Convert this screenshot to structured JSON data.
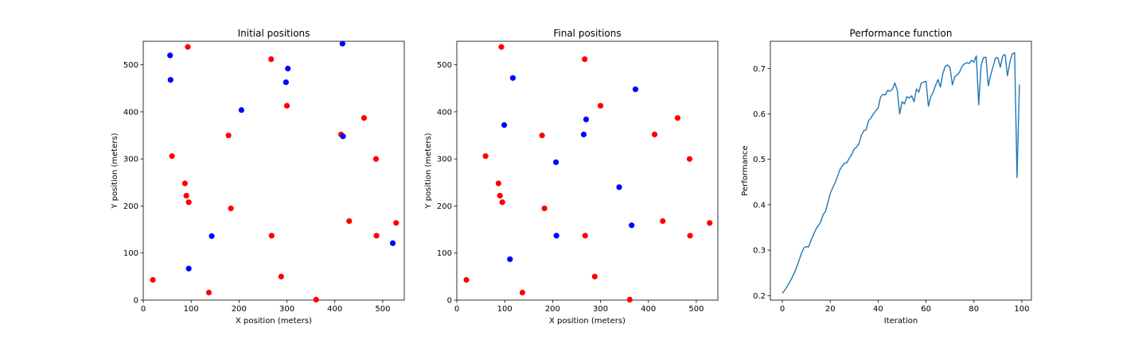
{
  "chart_data": [
    {
      "type": "scatter",
      "title": "Initial positions",
      "xlabel": "X position (meters)",
      "ylabel": "Y position (meters)",
      "xlim": [
        0,
        545
      ],
      "ylim": [
        0,
        550
      ],
      "xticks": [
        0,
        100,
        200,
        300,
        400,
        500
      ],
      "yticks": [
        0,
        100,
        200,
        300,
        400,
        500
      ],
      "grid": false,
      "series": [
        {
          "color": "#ff0000",
          "points": [
            [
              20,
              43
            ],
            [
              93,
              538
            ],
            [
              267,
              512
            ],
            [
              60,
              306
            ],
            [
              87,
              248
            ],
            [
              90,
              222
            ],
            [
              95,
              208
            ],
            [
              178,
              350
            ],
            [
              183,
              195
            ],
            [
              300,
              413
            ],
            [
              413,
              352
            ],
            [
              461,
              387
            ],
            [
              486,
              300
            ],
            [
              430,
              168
            ],
            [
              528,
              164
            ],
            [
              487,
              137
            ],
            [
              268,
              137
            ],
            [
              288,
              50
            ],
            [
              137,
              16
            ],
            [
              361,
              1
            ]
          ]
        },
        {
          "color": "#0000ff",
          "points": [
            [
              56,
              520
            ],
            [
              57,
              468
            ],
            [
              302,
              492
            ],
            [
              298,
              463
            ],
            [
              205,
              404
            ],
            [
              416,
              545
            ],
            [
              417,
              348
            ],
            [
              143,
              136
            ],
            [
              95,
              67
            ],
            [
              521,
              121
            ]
          ]
        }
      ]
    },
    {
      "type": "scatter",
      "title": "Final positions",
      "xlabel": "X position (meters)",
      "ylabel": "Y position (meters)",
      "xlim": [
        0,
        545
      ],
      "ylim": [
        0,
        550
      ],
      "xticks": [
        0,
        100,
        200,
        300,
        400,
        500
      ],
      "yticks": [
        0,
        100,
        200,
        300,
        400,
        500
      ],
      "grid": false,
      "series": [
        {
          "color": "#ff0000",
          "points": [
            [
              20,
              43
            ],
            [
              93,
              538
            ],
            [
              267,
              512
            ],
            [
              60,
              306
            ],
            [
              87,
              248
            ],
            [
              90,
              222
            ],
            [
              95,
              208
            ],
            [
              178,
              350
            ],
            [
              183,
              195
            ],
            [
              300,
              413
            ],
            [
              413,
              352
            ],
            [
              461,
              387
            ],
            [
              486,
              300
            ],
            [
              430,
              168
            ],
            [
              528,
              164
            ],
            [
              487,
              137
            ],
            [
              268,
              137
            ],
            [
              288,
              50
            ],
            [
              137,
              16
            ],
            [
              361,
              1
            ]
          ]
        },
        {
          "color": "#0000ff",
          "points": [
            [
              117,
              472
            ],
            [
              99,
              372
            ],
            [
              373,
              448
            ],
            [
              270,
              384
            ],
            [
              265,
              352
            ],
            [
              207,
              293
            ],
            [
              339,
              240
            ],
            [
              365,
              159
            ],
            [
              208,
              137
            ],
            [
              111,
              87
            ]
          ]
        }
      ]
    },
    {
      "type": "line",
      "title": "Performance function",
      "xlabel": "Iteration",
      "ylabel": "Performance",
      "xlim": [
        -5,
        104
      ],
      "ylim": [
        0.19,
        0.76
      ],
      "xticks": [
        0,
        20,
        40,
        60,
        80,
        100
      ],
      "yticks": [
        0.2,
        0.3,
        0.4,
        0.5,
        0.6,
        0.7
      ],
      "grid": false,
      "series": [
        {
          "color": "#1f77b4",
          "x": [
            0,
            1,
            2,
            3,
            4,
            5,
            6,
            7,
            8,
            9,
            10,
            11,
            12,
            13,
            14,
            15,
            16,
            17,
            18,
            19,
            20,
            21,
            22,
            23,
            24,
            25,
            26,
            27,
            28,
            29,
            30,
            31,
            32,
            33,
            34,
            35,
            36,
            37,
            38,
            39,
            40,
            41,
            42,
            43,
            44,
            45,
            46,
            47,
            48,
            49,
            50,
            51,
            52,
            53,
            54,
            55,
            56,
            57,
            58,
            59,
            60,
            61,
            62,
            63,
            64,
            65,
            66,
            67,
            68,
            69,
            70,
            71,
            72,
            73,
            74,
            75,
            76,
            77,
            78,
            79,
            80,
            81,
            82,
            83,
            84,
            85,
            86,
            87,
            88,
            89,
            90,
            91,
            92,
            93,
            94,
            95,
            96,
            97,
            98,
            99
          ],
          "y": [
            0.205,
            0.212,
            0.22,
            0.229,
            0.239,
            0.25,
            0.263,
            0.278,
            0.293,
            0.305,
            0.308,
            0.307,
            0.322,
            0.334,
            0.346,
            0.354,
            0.362,
            0.378,
            0.385,
            0.404,
            0.425,
            0.437,
            0.448,
            0.462,
            0.477,
            0.485,
            0.492,
            0.493,
            0.503,
            0.511,
            0.523,
            0.527,
            0.535,
            0.553,
            0.563,
            0.565,
            0.585,
            0.591,
            0.6,
            0.607,
            0.613,
            0.637,
            0.643,
            0.642,
            0.652,
            0.65,
            0.655,
            0.668,
            0.652,
            0.6,
            0.627,
            0.622,
            0.638,
            0.635,
            0.64,
            0.627,
            0.655,
            0.648,
            0.668,
            0.67,
            0.672,
            0.617,
            0.638,
            0.648,
            0.663,
            0.676,
            0.659,
            0.688,
            0.705,
            0.708,
            0.702,
            0.664,
            0.682,
            0.686,
            0.692,
            0.705,
            0.71,
            0.713,
            0.711,
            0.718,
            0.714,
            0.728,
            0.62,
            0.707,
            0.724,
            0.725,
            0.662,
            0.686,
            0.704,
            0.723,
            0.724,
            0.703,
            0.728,
            0.731,
            0.684,
            0.714,
            0.732,
            0.735,
            0.46,
            0.665
          ]
        }
      ]
    }
  ]
}
